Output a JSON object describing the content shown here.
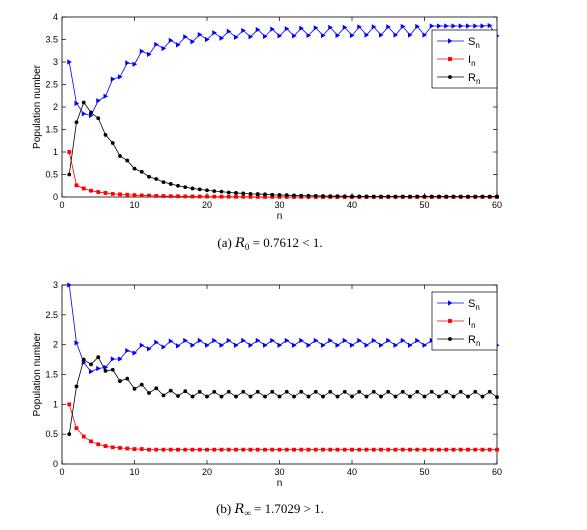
{
  "chart_data": [
    {
      "type": "line",
      "xlabel": "n",
      "ylabel": "Population number",
      "xlim": [
        0,
        60
      ],
      "ylim": [
        0,
        4
      ],
      "xticks": [
        0,
        10,
        20,
        30,
        40,
        50,
        60
      ],
      "yticks": [
        0,
        0.5,
        1,
        1.5,
        2,
        2.5,
        3,
        3.5,
        4
      ],
      "legend_position": "top-right",
      "caption_prefix": "(a)",
      "caption_symbol": "R",
      "caption_sub": "0",
      "caption_rest": "= 0.7612 < 1.",
      "series": [
        {
          "name": "S",
          "name_sub": "n",
          "color": "#0000ff",
          "marker": "triangle-right",
          "values": [
            3.0,
            2.08,
            1.85,
            1.81,
            2.14,
            2.24,
            2.62,
            2.67,
            2.98,
            2.95,
            3.24,
            3.17,
            3.39,
            3.3,
            3.48,
            3.38,
            3.56,
            3.45,
            3.61,
            3.5,
            3.65,
            3.53,
            3.68,
            3.55,
            3.7,
            3.56,
            3.72,
            3.57,
            3.73,
            3.58,
            3.74,
            3.58,
            3.75,
            3.59,
            3.76,
            3.59,
            3.77,
            3.59,
            3.77,
            3.59,
            3.78,
            3.6,
            3.78,
            3.6,
            3.78,
            3.6,
            3.79,
            3.6,
            3.79,
            3.6,
            3.8,
            3.8,
            3.8,
            3.8,
            3.8,
            3.8,
            3.8,
            3.8,
            3.81,
            3.58
          ]
        },
        {
          "name": "I",
          "name_sub": "n",
          "color": "#ff0000",
          "marker": "square",
          "values": [
            1.0,
            0.26,
            0.19,
            0.14,
            0.11,
            0.09,
            0.07,
            0.06,
            0.05,
            0.04,
            0.035,
            0.03,
            0.025,
            0.02,
            0.018,
            0.016,
            0.014,
            0.012,
            0.01,
            0.009,
            0.008,
            0.007,
            0.006,
            0.005,
            0.005,
            0.004,
            0.004,
            0.003,
            0.003,
            0.003,
            0.002,
            0.002,
            0.002,
            0.002,
            0.002,
            0.001,
            0.001,
            0.001,
            0.001,
            0.001,
            0.001,
            0.001,
            0.001,
            0.001,
            0.001,
            0.001,
            0.001,
            0.001,
            0.001,
            0.001,
            0.001,
            0.001,
            0.001,
            0.001,
            0.001,
            0.001,
            0.001,
            0.001,
            0.001,
            0.001
          ]
        },
        {
          "name": "R",
          "name_sub": "n",
          "color": "#000000",
          "marker": "circle",
          "values": [
            0.5,
            1.66,
            2.1,
            1.88,
            1.75,
            1.38,
            1.2,
            0.91,
            0.81,
            0.63,
            0.56,
            0.45,
            0.4,
            0.33,
            0.29,
            0.25,
            0.22,
            0.19,
            0.17,
            0.15,
            0.13,
            0.12,
            0.1,
            0.09,
            0.08,
            0.07,
            0.065,
            0.06,
            0.05,
            0.045,
            0.04,
            0.035,
            0.03,
            0.028,
            0.025,
            0.022,
            0.02,
            0.018,
            0.016,
            0.014,
            0.013,
            0.012,
            0.011,
            0.01,
            0.01,
            0.01,
            0.01,
            0.01,
            0.01,
            0.01,
            0.01,
            0.01,
            0.01,
            0.01,
            0.01,
            0.01,
            0.01,
            0.01,
            0.01,
            0.01
          ]
        }
      ]
    },
    {
      "type": "line",
      "xlabel": "n",
      "ylabel": "Population number",
      "xlim": [
        0,
        60
      ],
      "ylim": [
        0,
        3
      ],
      "xticks": [
        0,
        10,
        20,
        30,
        40,
        50,
        60
      ],
      "yticks": [
        0,
        0.5,
        1,
        1.5,
        2,
        2.5,
        3
      ],
      "legend_position": "top-right",
      "caption_prefix": "(b)",
      "caption_symbol": "R",
      "caption_sub": "∞",
      "caption_rest": "= 1.7029 > 1.",
      "series": [
        {
          "name": "S",
          "name_sub": "n",
          "color": "#0000ff",
          "marker": "triangle-right",
          "values": [
            3.0,
            2.03,
            1.7,
            1.55,
            1.6,
            1.62,
            1.76,
            1.76,
            1.9,
            1.86,
            1.99,
            1.93,
            2.04,
            1.96,
            2.06,
            1.98,
            2.07,
            1.99,
            2.07,
            1.99,
            2.07,
            1.99,
            2.07,
            1.99,
            2.07,
            1.99,
            2.07,
            1.99,
            2.07,
            1.99,
            2.07,
            1.99,
            2.07,
            1.99,
            2.07,
            1.99,
            2.07,
            1.99,
            2.07,
            1.99,
            2.07,
            1.99,
            2.07,
            1.99,
            2.07,
            1.99,
            2.07,
            1.99,
            2.07,
            1.99,
            2.07,
            1.99,
            2.07,
            1.99,
            2.07,
            1.99,
            2.07,
            1.99,
            2.07,
            1.99
          ]
        },
        {
          "name": "I",
          "name_sub": "n",
          "color": "#ff0000",
          "marker": "square",
          "values": [
            1.0,
            0.6,
            0.46,
            0.38,
            0.33,
            0.3,
            0.28,
            0.27,
            0.26,
            0.25,
            0.25,
            0.24,
            0.24,
            0.24,
            0.24,
            0.24,
            0.24,
            0.24,
            0.24,
            0.24,
            0.24,
            0.24,
            0.24,
            0.24,
            0.24,
            0.24,
            0.24,
            0.24,
            0.24,
            0.24,
            0.24,
            0.24,
            0.24,
            0.24,
            0.24,
            0.24,
            0.24,
            0.24,
            0.24,
            0.24,
            0.24,
            0.24,
            0.24,
            0.24,
            0.24,
            0.24,
            0.24,
            0.24,
            0.24,
            0.24,
            0.24,
            0.24,
            0.24,
            0.24,
            0.24,
            0.24,
            0.24,
            0.24,
            0.24,
            0.24
          ]
        },
        {
          "name": "R",
          "name_sub": "n",
          "color": "#000000",
          "marker": "circle",
          "values": [
            0.5,
            1.3,
            1.75,
            1.67,
            1.79,
            1.56,
            1.58,
            1.39,
            1.43,
            1.26,
            1.33,
            1.19,
            1.27,
            1.15,
            1.23,
            1.14,
            1.22,
            1.13,
            1.21,
            1.13,
            1.21,
            1.13,
            1.21,
            1.13,
            1.21,
            1.13,
            1.21,
            1.13,
            1.21,
            1.13,
            1.21,
            1.13,
            1.21,
            1.13,
            1.21,
            1.13,
            1.21,
            1.13,
            1.21,
            1.13,
            1.21,
            1.13,
            1.21,
            1.13,
            1.21,
            1.13,
            1.21,
            1.13,
            1.21,
            1.13,
            1.21,
            1.13,
            1.21,
            1.13,
            1.21,
            1.13,
            1.21,
            1.13,
            1.21,
            1.12
          ]
        }
      ]
    }
  ]
}
